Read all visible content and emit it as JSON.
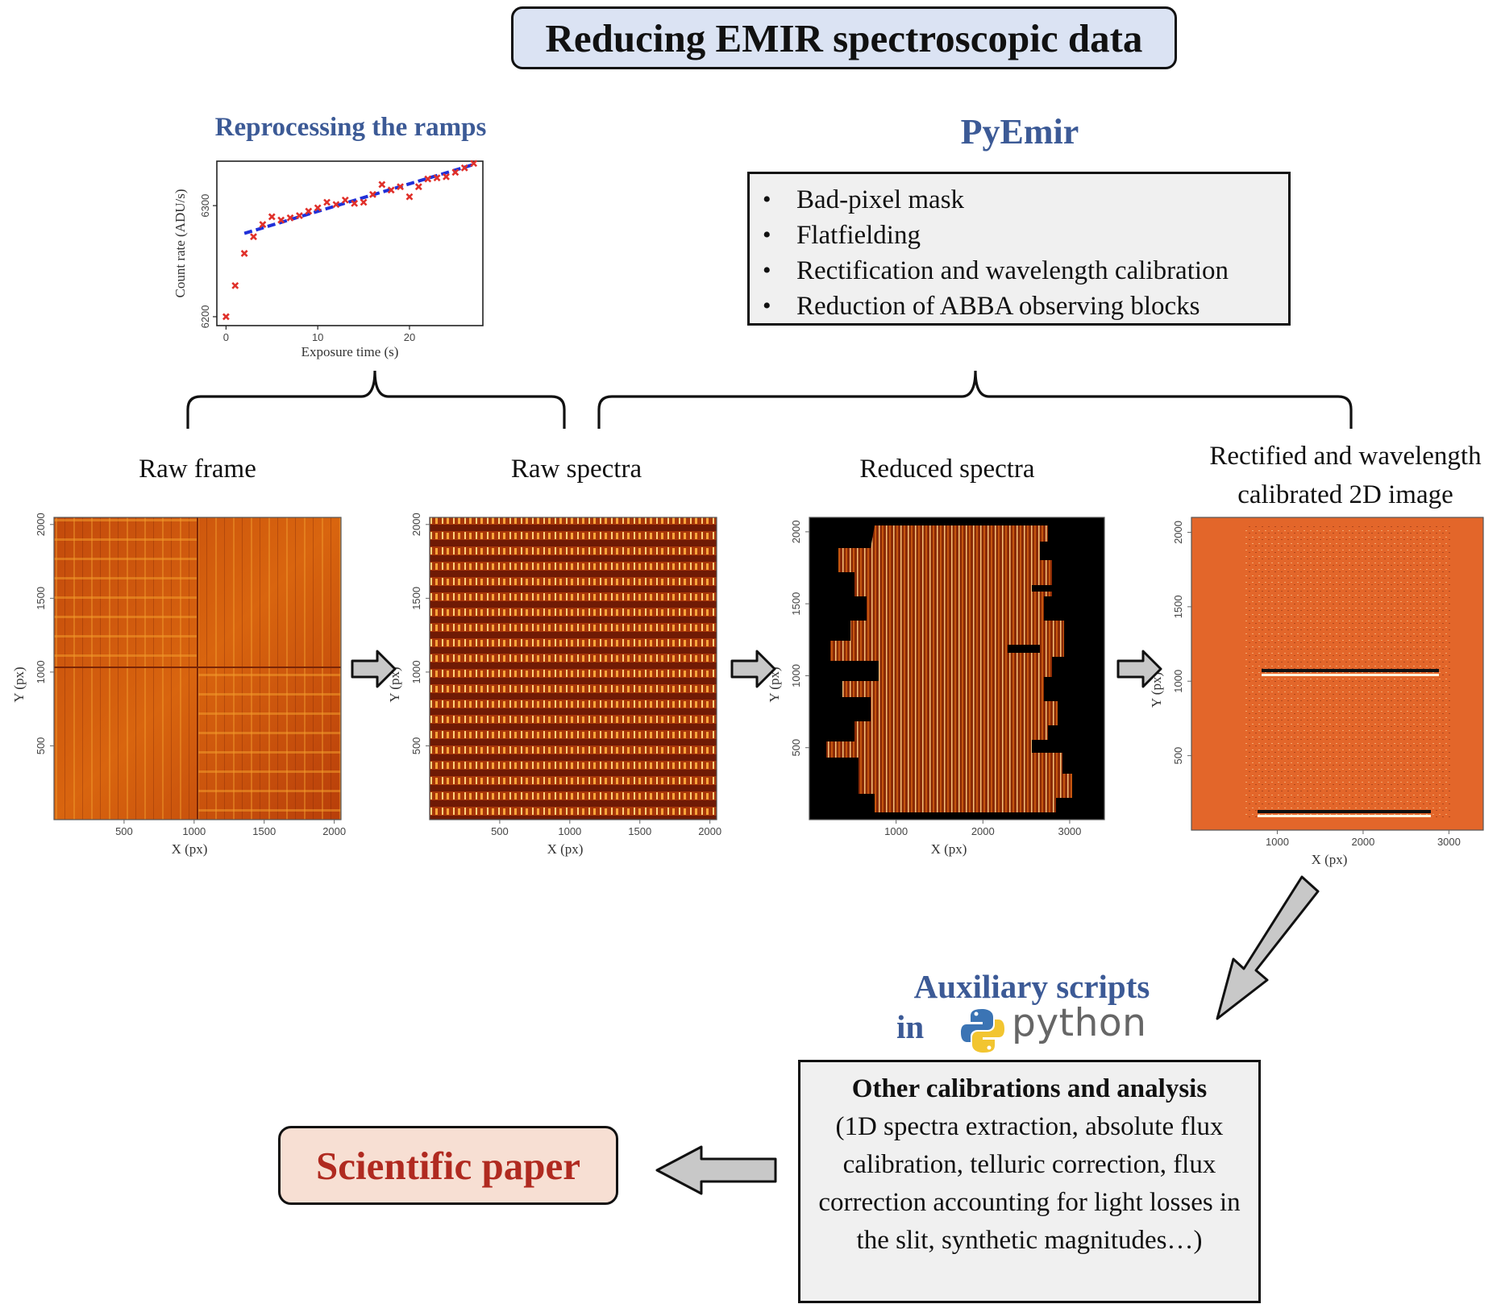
{
  "title": "Reducing EMIR spectroscopic data",
  "ramps": {
    "heading": "Reprocessing the ramps",
    "chart_data": {
      "type": "scatter",
      "xlabel": "Exposure time (s)",
      "ylabel": "Count rate (ADU/s)",
      "xlim": [
        -1,
        28
      ],
      "ylim": [
        6192,
        6340
      ],
      "x_ticks": [
        "0",
        "10",
        "20"
      ],
      "y_ticks": [
        "6200",
        "6300"
      ],
      "grid": false,
      "series": [
        {
          "marker": "x",
          "color": "#e0302a",
          "points": [
            [
              0,
              6200
            ],
            [
              1,
              6228
            ],
            [
              2,
              6257
            ],
            [
              3,
              6272
            ],
            [
              4,
              6283
            ],
            [
              5,
              6290
            ],
            [
              6,
              6287
            ],
            [
              7,
              6289
            ],
            [
              8,
              6291
            ],
            [
              9,
              6295
            ],
            [
              10,
              6298
            ],
            [
              11,
              6303
            ],
            [
              12,
              6301
            ],
            [
              13,
              6305
            ],
            [
              14,
              6302
            ],
            [
              15,
              6303
            ],
            [
              16,
              6310
            ],
            [
              17,
              6319
            ],
            [
              18,
              6314
            ],
            [
              19,
              6317
            ],
            [
              20,
              6308
            ],
            [
              21,
              6317
            ],
            [
              22,
              6324
            ],
            [
              23,
              6325
            ],
            [
              24,
              6326
            ],
            [
              25,
              6330
            ],
            [
              26,
              6334
            ],
            [
              27,
              6338
            ]
          ]
        },
        {
          "style": "dashed-line",
          "color": "#2030d8",
          "points": [
            [
              2,
              6275
            ],
            [
              27,
              6337
            ]
          ]
        }
      ]
    }
  },
  "pyemir": {
    "heading": "PyEmir",
    "items": [
      "Bad-pixel mask",
      "Flatfielding",
      "Rectification and wavelength calibration",
      "Reduction of ABBA observing blocks"
    ]
  },
  "panels": [
    {
      "label": "Raw frame",
      "xlabel": "X (px)",
      "ylabel": "Y (px)",
      "x_ticks": [
        "500",
        "1000",
        "1500",
        "2000"
      ],
      "y_ticks": [
        "500",
        "1000",
        "1500",
        "2000"
      ]
    },
    {
      "label": "Raw spectra",
      "xlabel": "X (px)",
      "ylabel": "Y (px)",
      "x_ticks": [
        "500",
        "1000",
        "1500",
        "2000"
      ],
      "y_ticks": [
        "500",
        "1000",
        "1500",
        "2000"
      ]
    },
    {
      "label": "Reduced spectra",
      "xlabel": "X (px)",
      "ylabel": "Y (px)",
      "x_ticks": [
        "1000",
        "2000",
        "3000"
      ],
      "y_ticks": [
        "500",
        "1000",
        "1500",
        "2000"
      ]
    },
    {
      "label": "Rectified and wavelength calibrated 2D image",
      "xlabel": "X (px)",
      "ylabel": "Y (px)",
      "x_ticks": [
        "1000",
        "2000",
        "3000"
      ],
      "y_ticks": [
        "500",
        "1000",
        "1500",
        "2000"
      ]
    }
  ],
  "auxiliary": {
    "line1": "Auxiliary scripts",
    "in_word": "in",
    "python_word": "python"
  },
  "other": {
    "heading": "Other calibrations and analysis",
    "body": "(1D spectra extraction, absolute flux calibration, telluric correction, flux correction accounting for light losses in the slit, synthetic magnitudes…)"
  },
  "scientific_paper": "Scientific paper",
  "colors": {
    "title_bg": "#dbe3f3",
    "heading_blue": "#3c5a96",
    "paper_red": "#b02a20",
    "paper_bg": "#f7dfd3",
    "box_bg": "#f0f0f0",
    "arrow_fill": "#c8c8c8"
  }
}
